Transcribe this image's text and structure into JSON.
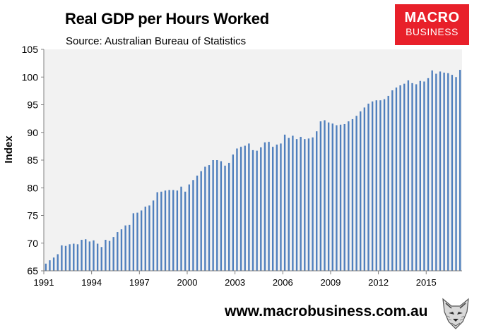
{
  "chart_data": {
    "type": "bar",
    "title": "Real GDP per Hours Worked",
    "subtitle": "Source: Australian Bureau of Statistics",
    "ylabel": "Index",
    "xlabel": "",
    "ylim": [
      65,
      105
    ],
    "yticks": [
      65,
      70,
      75,
      80,
      85,
      90,
      95,
      100,
      105
    ],
    "xticks": [
      "1991",
      "1994",
      "1997",
      "2000",
      "2003",
      "2006",
      "2009",
      "2012",
      "2015"
    ],
    "frequency": "quarterly",
    "grid": false,
    "plot_background": "#f2f2f2",
    "bar_color": "#4f7fbd",
    "values": [
      66.3,
      66.9,
      67.4,
      68.0,
      69.6,
      69.5,
      69.8,
      69.9,
      69.8,
      70.6,
      70.7,
      70.3,
      70.5,
      69.9,
      69.3,
      70.6,
      70.4,
      71.1,
      72.0,
      72.5,
      73.2,
      73.3,
      75.4,
      75.5,
      75.9,
      76.6,
      76.8,
      77.7,
      79.2,
      79.3,
      79.5,
      79.6,
      79.6,
      79.5,
      80.2,
      79.3,
      80.6,
      81.4,
      82.2,
      83.0,
      83.8,
      84.1,
      85.0,
      85.0,
      84.8,
      84.0,
      84.5,
      86.0,
      87.1,
      87.4,
      87.6,
      88.0,
      86.8,
      86.7,
      87.3,
      88.2,
      88.3,
      87.4,
      87.8,
      88.0,
      89.6,
      89.0,
      89.4,
      88.8,
      89.2,
      88.8,
      88.9,
      89.1,
      90.2,
      92.0,
      92.2,
      91.8,
      91.6,
      91.3,
      91.4,
      91.5,
      92.0,
      92.4,
      93.0,
      93.8,
      94.5,
      95.2,
      95.6,
      95.8,
      95.8,
      96.0,
      96.6,
      97.6,
      98.1,
      98.5,
      98.8,
      99.4,
      98.9,
      98.7,
      99.3,
      99.2,
      99.8,
      101.2,
      100.6,
      101.0,
      100.8,
      100.7,
      100.4,
      100.0,
      101.3
    ]
  },
  "branding": {
    "logo_line1": "MACRO",
    "logo_line2": "BUSINESS",
    "logo_color": "#e8202a",
    "website": "www.macrobusiness.com.au",
    "mascot": "wolf-head-icon"
  }
}
